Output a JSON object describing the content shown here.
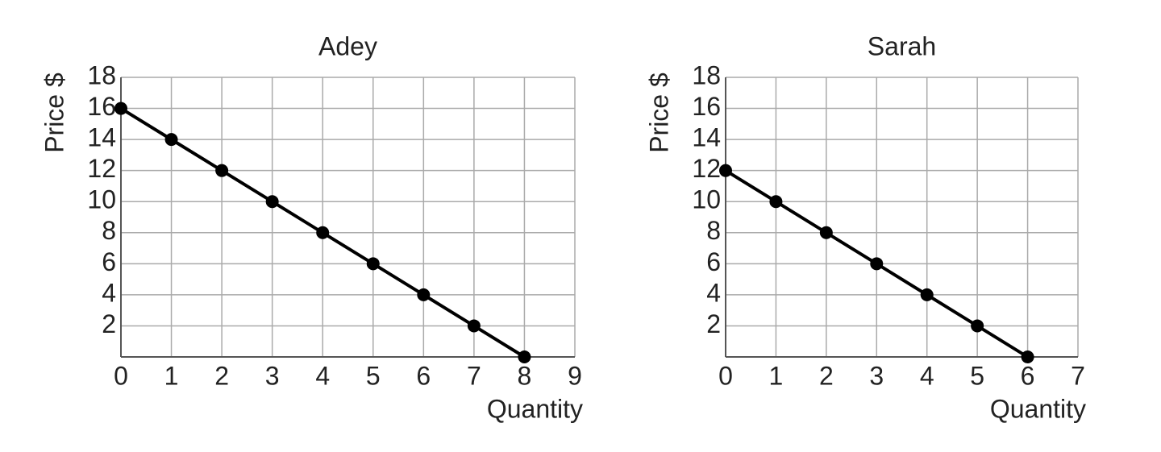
{
  "chart_data": [
    {
      "type": "line",
      "title": "Adey",
      "x_label": "Quantity",
      "y_label": "Price $",
      "x": [
        0,
        1,
        2,
        3,
        4,
        5,
        6,
        7,
        8
      ],
      "values": [
        16,
        14,
        12,
        10,
        8,
        6,
        4,
        2,
        0
      ],
      "color": "#000000",
      "xlim": [
        0,
        9
      ],
      "xticks": [
        0,
        1,
        2,
        3,
        4,
        5,
        6,
        7,
        8,
        9
      ],
      "ylim": [
        0,
        18
      ],
      "yticks": [
        2,
        4,
        6,
        8,
        10,
        12,
        14,
        16,
        18
      ],
      "grid": true
    },
    {
      "type": "line",
      "title": "Sarah",
      "x_label": "Quantity",
      "y_label": "Price $",
      "x": [
        0,
        1,
        2,
        3,
        4,
        5,
        6
      ],
      "values": [
        12,
        10,
        8,
        6,
        4,
        2,
        0
      ],
      "color": "#000000",
      "xlim": [
        0,
        7
      ],
      "xticks": [
        0,
        1,
        2,
        3,
        4,
        5,
        6,
        7
      ],
      "ylim": [
        0,
        18
      ],
      "yticks": [
        2,
        4,
        6,
        8,
        10,
        12,
        14,
        16,
        18
      ],
      "grid": true
    }
  ]
}
